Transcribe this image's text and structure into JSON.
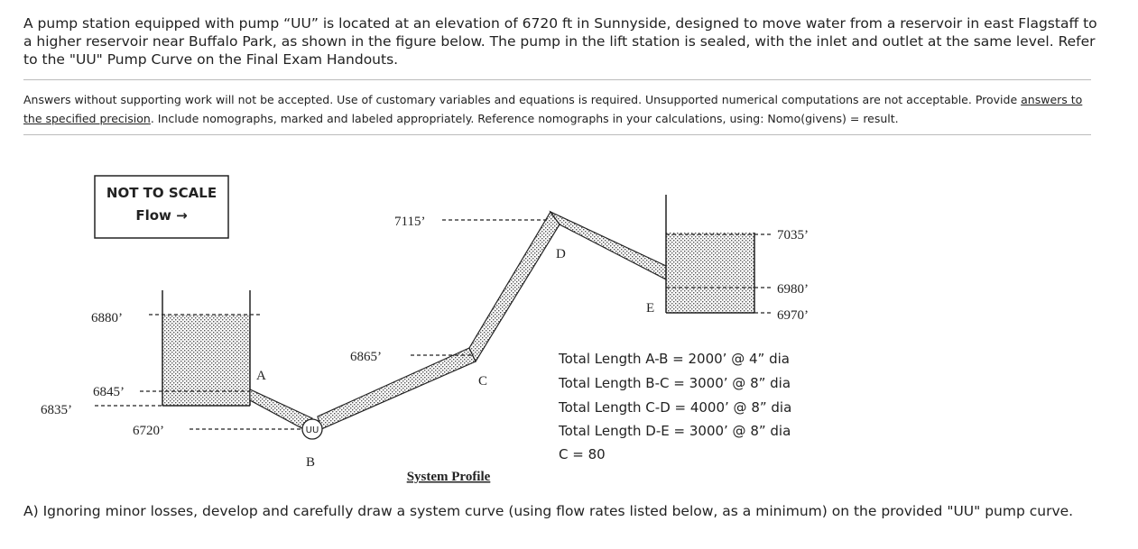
{
  "intro": "A pump station equipped with pump “UU” is located at an elevation of 6720 ft in Sunnyside, designed to move water from a reservoir in east Flagstaff to a higher reservoir near Buffalo Park, as shown in the figure below.  The pump in the lift station is sealed, with the inlet and outlet at the same level.  Refer to the \"UU\" Pump Curve on the Final Exam Handouts.",
  "instructions": {
    "text1": "Answers without supporting work will not be accepted.  Use of customary variables and equations is required.  Unsupported numerical computations are not acceptable.  Provide ",
    "underlined": "answers to the specified precision",
    "text2": ".  Include nomographs, marked and labeled appropriately.  Reference nomographs in your calculations, using:  Nomo(givens) = result."
  },
  "diagram": {
    "box_line1": "NOT TO SCALE",
    "box_line2": "Flow →",
    "elevations": {
      "e6880": "6880’",
      "e6845": "6845’",
      "e6835": "6835’",
      "e6720": "6720’",
      "e6865": "6865’",
      "e7115": "7115’",
      "e7035": "7035’",
      "e6980": "6980’",
      "e6970": "6970’"
    },
    "points": {
      "A": "A",
      "B": "B",
      "C": "C",
      "D": "D",
      "E": "E"
    },
    "pump_label": "UU",
    "caption": "System Profile",
    "lengths": [
      "Total Length A-B = 2000’  @ 4” dia",
      "Total Length B-C = 3000’  @ 8” dia",
      "Total Length C-D = 4000’  @ 8” dia",
      "Total Length D-E = 3000’  @ 8” dia",
      "C = 80"
    ]
  },
  "question": "A)  Ignoring minor losses, develop and carefully draw a system curve (using flow rates listed below, as a minimum) on the provided \"UU\" pump curve."
}
